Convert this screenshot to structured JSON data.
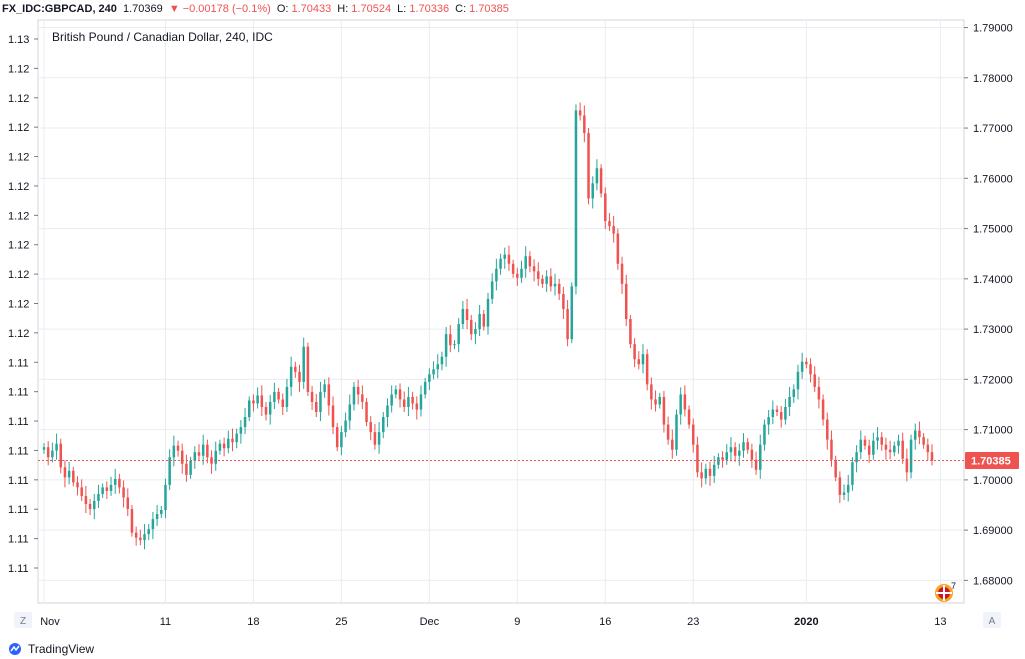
{
  "header": {
    "symbol": "FX_IDC:GBPCAD, 240",
    "last": "1.70369",
    "change_arrow": "▼",
    "change": "−0.00178 (−0.1%)",
    "open_label": "O:",
    "open": "1.70433",
    "high_label": "H:",
    "high": "1.70524",
    "low_label": "L:",
    "low": "1.70336",
    "close_label": "C:",
    "close": "1.70385"
  },
  "legend_title": "British Pound / Canadian Dollar, 240, IDC",
  "price_label": "1.70385",
  "buttons": {
    "zoom": "Z",
    "auto": "A"
  },
  "flag_count": "7",
  "brand": "TradingView",
  "colors": {
    "up": "#26a69a",
    "down": "#ef5350",
    "grid": "#e9ecf1",
    "axis": "#787b86"
  },
  "chart_data": {
    "type": "candlestick",
    "title": "British Pound / Canadian Dollar, 240, IDC",
    "y_right_ticks": [
      "1.68000",
      "1.69000",
      "1.70000",
      "1.71000",
      "1.72000",
      "1.73000",
      "1.74000",
      "1.75000",
      "1.76000",
      "1.77000",
      "1.78000",
      "1.79000"
    ],
    "y_right_values": [
      1.68,
      1.69,
      1.7,
      1.71,
      1.72,
      1.73,
      1.74,
      1.75,
      1.76,
      1.77,
      1.78,
      1.79
    ],
    "y_left_ticks": [
      "1.13",
      "1.12",
      "1.12",
      "1.12",
      "1.12",
      "1.12",
      "1.12",
      "1.12",
      "1.12",
      "1.12",
      "1.12",
      "1.11",
      "1.11",
      "1.11",
      "1.11",
      "1.11",
      "1.11",
      "1.11",
      "1.11"
    ],
    "x_ticks": [
      {
        "label": "Nov",
        "index": 0
      },
      {
        "label": "11",
        "index": 29
      },
      {
        "label": "18",
        "index": 50
      },
      {
        "label": "25",
        "index": 71
      },
      {
        "label": "Dec",
        "index": 92
      },
      {
        "label": "9",
        "index": 113
      },
      {
        "label": "16",
        "index": 134
      },
      {
        "label": "23",
        "index": 155
      },
      {
        "label": "2020",
        "index": 182
      },
      {
        "label": "13",
        "index": 214
      }
    ],
    "ylim": [
      1.6755,
      1.7915
    ],
    "last_price": 1.70385,
    "closes": [
      1.7065,
      1.7045,
      1.7058,
      1.7072,
      1.7025,
      1.7005,
      1.7018,
      1.6995,
      1.6985,
      1.6968,
      1.6952,
      1.6942,
      1.6958,
      1.6972,
      1.6985,
      1.6978,
      1.699,
      1.7002,
      1.6985,
      1.6965,
      1.6942,
      1.6895,
      1.6885,
      1.688,
      1.6892,
      1.6902,
      1.6922,
      1.6932,
      1.694,
      1.699,
      1.7045,
      1.7068,
      1.7058,
      1.7032,
      1.701,
      1.7038,
      1.7055,
      1.7048,
      1.707,
      1.7045,
      1.7032,
      1.7058,
      1.7072,
      1.7063,
      1.7082,
      1.7075,
      1.7092,
      1.7105,
      1.7125,
      1.7158,
      1.7152,
      1.7168,
      1.7145,
      1.713,
      1.7155,
      1.7175,
      1.716,
      1.7145,
      1.7185,
      1.7225,
      1.7215,
      1.7195,
      1.7265,
      1.7175,
      1.7155,
      1.7135,
      1.7175,
      1.719,
      1.7148,
      1.7105,
      1.7065,
      1.7095,
      1.7118,
      1.715,
      1.7185,
      1.717,
      1.7155,
      1.7115,
      1.7095,
      1.707,
      1.7095,
      1.7125,
      1.7148,
      1.717,
      1.718,
      1.716,
      1.7145,
      1.7165,
      1.7152,
      1.714,
      1.717,
      1.7195,
      1.721,
      1.722,
      1.723,
      1.7245,
      1.729,
      1.7268,
      1.727,
      1.731,
      1.734,
      1.7318,
      1.729,
      1.73,
      1.733,
      1.7305,
      1.736,
      1.7395,
      1.742,
      1.744,
      1.7448,
      1.743,
      1.741,
      1.7402,
      1.742,
      1.7445,
      1.7425,
      1.7415,
      1.74,
      1.739,
      1.7405,
      1.7385,
      1.739,
      1.737,
      1.734,
      1.728,
      1.7385,
      1.7735,
      1.7725,
      1.769,
      1.756,
      1.759,
      1.762,
      1.757,
      1.7515,
      1.7505,
      1.749,
      1.743,
      1.739,
      1.732,
      1.727,
      1.724,
      1.723,
      1.725,
      1.719,
      1.716,
      1.715,
      1.7165,
      1.711,
      1.708,
      1.706,
      1.713,
      1.717,
      1.714,
      1.711,
      1.707,
      1.7015,
      1.7003,
      1.7022,
      1.7008,
      1.703,
      1.7045,
      1.704,
      1.7055,
      1.7065,
      1.7048,
      1.7058,
      1.7075,
      1.706,
      1.704,
      1.702,
      1.707,
      1.711,
      1.7125,
      1.714,
      1.7135,
      1.712,
      1.7145,
      1.7165,
      1.718,
      1.7215,
      1.7235,
      1.723,
      1.721,
      1.7185,
      1.716,
      1.712,
      1.708,
      1.704,
      1.7005,
      1.697,
      1.6975,
      1.699,
      1.7035,
      1.7055,
      1.708,
      1.7068,
      1.705,
      1.7078,
      1.7085,
      1.707,
      1.706,
      1.7055,
      1.7068,
      1.7078,
      1.7042,
      1.7015,
      1.708,
      1.7098,
      1.7085,
      1.707,
      1.7055,
      1.70385
    ]
  }
}
